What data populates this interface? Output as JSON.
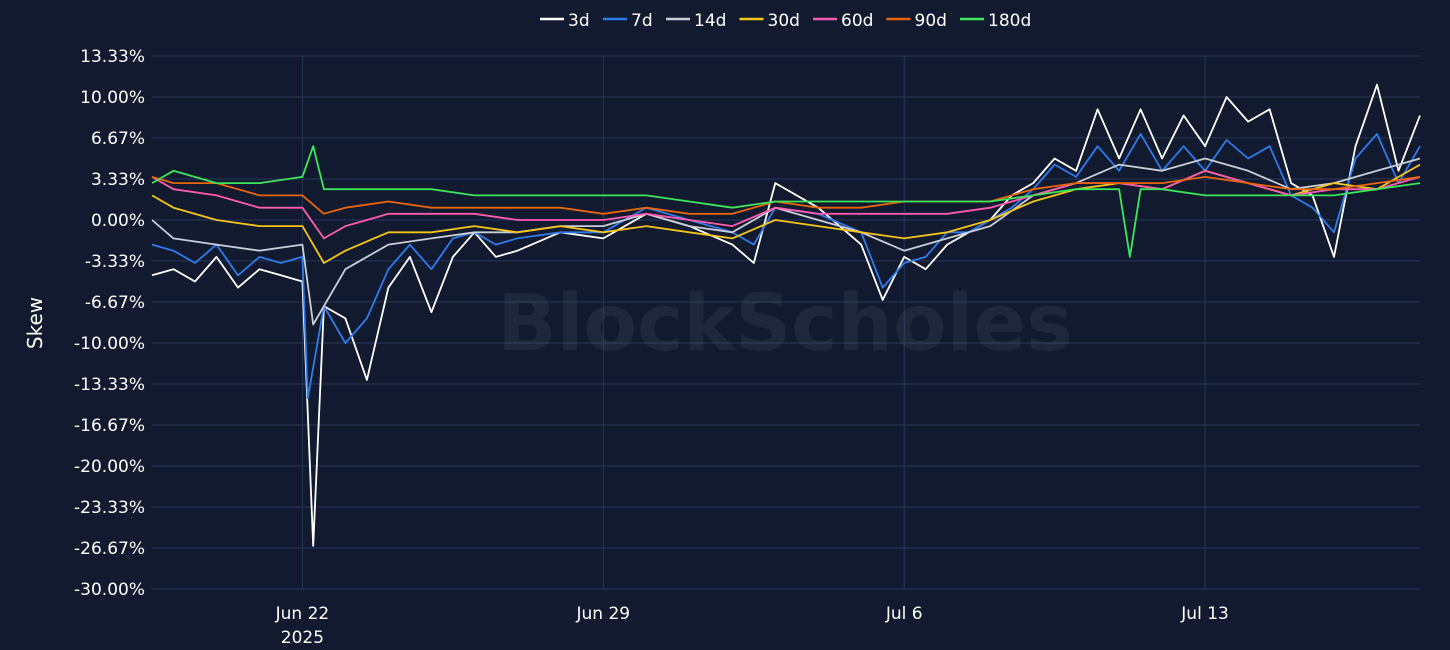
{
  "chart_data": {
    "type": "line",
    "ylabel": "Skew",
    "watermark": "BlockScholes",
    "ylim": [
      -30,
      13.33
    ],
    "y_ticks": [
      13.33,
      10.0,
      6.67,
      3.33,
      0.0,
      -3.33,
      -6.67,
      -10.0,
      -13.33,
      -16.67,
      -20.0,
      -23.33,
      -26.67,
      -30.0
    ],
    "y_tick_labels": [
      "13.33%",
      "10.00%",
      "6.67%",
      "3.33%",
      "0.00%",
      "-3.33%",
      "-6.67%",
      "-10.00%",
      "-13.33%",
      "-16.67%",
      "-20.00%",
      "-23.33%",
      "-26.67%",
      "-30.00%"
    ],
    "xlim": [
      "2025-06-18 12:00",
      "2025-07-18"
    ],
    "x_ticks": [
      {
        "date": "2025-06-22",
        "label": "Jun 22",
        "sublabel": "2025"
      },
      {
        "date": "2025-06-29",
        "label": "Jun 29",
        "sublabel": ""
      },
      {
        "date": "2025-07-06",
        "label": "Jul 6",
        "sublabel": ""
      },
      {
        "date": "2025-07-13",
        "label": "Jul 13",
        "sublabel": ""
      }
    ],
    "grid": true,
    "legend_position": "top-center",
    "series": [
      {
        "name": "3d",
        "color": "#ffffff",
        "x": [
          "2025-06-18 12:00",
          "2025-06-19",
          "2025-06-19 12:00",
          "2025-06-20",
          "2025-06-20 12:00",
          "2025-06-21",
          "2025-06-21 12:00",
          "2025-06-22",
          "2025-06-22 06:00",
          "2025-06-22 12:00",
          "2025-06-23",
          "2025-06-23 12:00",
          "2025-06-24",
          "2025-06-24 12:00",
          "2025-06-25",
          "2025-06-25 12:00",
          "2025-06-26",
          "2025-06-26 12:00",
          "2025-06-27",
          "2025-06-28",
          "2025-06-29",
          "2025-06-30",
          "2025-07-01",
          "2025-07-02",
          "2025-07-02 12:00",
          "2025-07-03",
          "2025-07-04",
          "2025-07-05",
          "2025-07-05 12:00",
          "2025-07-06",
          "2025-07-06 12:00",
          "2025-07-07",
          "2025-07-07 12:00",
          "2025-07-08",
          "2025-07-08 12:00",
          "2025-07-09",
          "2025-07-09 12:00",
          "2025-07-10",
          "2025-07-10 12:00",
          "2025-07-11",
          "2025-07-11 12:00",
          "2025-07-12",
          "2025-07-12 12:00",
          "2025-07-13",
          "2025-07-13 12:00",
          "2025-07-14",
          "2025-07-14 12:00",
          "2025-07-15",
          "2025-07-15 12:00",
          "2025-07-16",
          "2025-07-16 12:00",
          "2025-07-17",
          "2025-07-17 12:00",
          "2025-07-18"
        ],
        "y": [
          -4.5,
          -4.0,
          -5.0,
          -3.0,
          -5.5,
          -4.0,
          -4.5,
          -5.0,
          -26.5,
          -7.0,
          -8.0,
          -13.0,
          -5.5,
          -3.0,
          -7.5,
          -3.0,
          -1.0,
          -3.0,
          -2.5,
          -1.0,
          -1.5,
          0.5,
          -0.5,
          -2.0,
          -3.5,
          3.0,
          1.0,
          -2.0,
          -6.5,
          -3.0,
          -4.0,
          -2.0,
          -1.0,
          0.0,
          2.0,
          3.0,
          5.0,
          4.0,
          9.0,
          5.0,
          9.0,
          5.0,
          8.5,
          6.0,
          10.0,
          8.0,
          9.0,
          3.0,
          2.0,
          -3.0,
          6.0,
          11.0,
          4.0,
          8.5
        ]
      },
      {
        "name": "7d",
        "color": "#2f7bec",
        "x": [
          "2025-06-18 12:00",
          "2025-06-19",
          "2025-06-19 12:00",
          "2025-06-20",
          "2025-06-20 12:00",
          "2025-06-21",
          "2025-06-21 12:00",
          "2025-06-22",
          "2025-06-22 03:00",
          "2025-06-22 12:00",
          "2025-06-23",
          "2025-06-23 12:00",
          "2025-06-24",
          "2025-06-24 12:00",
          "2025-06-25",
          "2025-06-25 12:00",
          "2025-06-26",
          "2025-06-26 12:00",
          "2025-06-27",
          "2025-06-28",
          "2025-06-29",
          "2025-06-30",
          "2025-07-01",
          "2025-07-02",
          "2025-07-02 12:00",
          "2025-07-03",
          "2025-07-04",
          "2025-07-05",
          "2025-07-05 12:00",
          "2025-07-06",
          "2025-07-06 12:00",
          "2025-07-07",
          "2025-07-07 12:00",
          "2025-07-08",
          "2025-07-08 12:00",
          "2025-07-09",
          "2025-07-09 12:00",
          "2025-07-10",
          "2025-07-10 12:00",
          "2025-07-11",
          "2025-07-11 12:00",
          "2025-07-12",
          "2025-07-12 12:00",
          "2025-07-13",
          "2025-07-13 12:00",
          "2025-07-14",
          "2025-07-14 12:00",
          "2025-07-15",
          "2025-07-15 12:00",
          "2025-07-16",
          "2025-07-16 12:00",
          "2025-07-17",
          "2025-07-17 12:00",
          "2025-07-18"
        ],
        "y": [
          -2.0,
          -2.5,
          -3.5,
          -2.0,
          -4.5,
          -3.0,
          -3.5,
          -3.0,
          -14.5,
          -7.0,
          -10.0,
          -8.0,
          -4.0,
          -2.0,
          -4.0,
          -1.5,
          -1.0,
          -2.0,
          -1.5,
          -1.0,
          -1.0,
          1.0,
          0.0,
          -1.0,
          -2.0,
          1.0,
          0.5,
          -1.0,
          -5.5,
          -3.5,
          -3.0,
          -1.0,
          -1.0,
          0.0,
          1.0,
          2.5,
          4.5,
          3.5,
          6.0,
          4.0,
          7.0,
          4.0,
          6.0,
          4.0,
          6.5,
          5.0,
          6.0,
          2.0,
          1.0,
          -1.0,
          5.0,
          7.0,
          3.0,
          6.0
        ]
      },
      {
        "name": "14d",
        "color": "#c9ced8",
        "x": [
          "2025-06-18 12:00",
          "2025-06-19",
          "2025-06-20",
          "2025-06-21",
          "2025-06-22",
          "2025-06-22 06:00",
          "2025-06-23",
          "2025-06-24",
          "2025-06-25",
          "2025-06-26",
          "2025-06-27",
          "2025-06-28",
          "2025-06-29",
          "2025-06-30",
          "2025-07-01",
          "2025-07-02",
          "2025-07-03",
          "2025-07-04",
          "2025-07-05",
          "2025-07-06",
          "2025-07-07",
          "2025-07-08",
          "2025-07-09",
          "2025-07-10",
          "2025-07-11",
          "2025-07-12",
          "2025-07-13",
          "2025-07-14",
          "2025-07-15",
          "2025-07-16",
          "2025-07-17",
          "2025-07-18"
        ],
        "y": [
          0.0,
          -1.5,
          -2.0,
          -2.5,
          -2.0,
          -8.5,
          -4.0,
          -2.0,
          -1.5,
          -1.0,
          -1.0,
          -0.5,
          -0.5,
          0.5,
          -0.5,
          -1.0,
          1.0,
          0.0,
          -1.0,
          -2.5,
          -1.5,
          -0.5,
          2.0,
          3.0,
          4.5,
          4.0,
          5.0,
          4.0,
          2.5,
          3.0,
          4.0,
          5.0
        ]
      },
      {
        "name": "30d",
        "color": "#f5c518",
        "x": [
          "2025-06-18 12:00",
          "2025-06-19",
          "2025-06-20",
          "2025-06-21",
          "2025-06-22",
          "2025-06-22 12:00",
          "2025-06-23",
          "2025-06-24",
          "2025-06-25",
          "2025-06-26",
          "2025-06-27",
          "2025-06-28",
          "2025-06-29",
          "2025-06-30",
          "2025-07-01",
          "2025-07-02",
          "2025-07-03",
          "2025-07-04",
          "2025-07-05",
          "2025-07-06",
          "2025-07-07",
          "2025-07-08",
          "2025-07-09",
          "2025-07-10",
          "2025-07-11",
          "2025-07-12",
          "2025-07-13",
          "2025-07-14",
          "2025-07-15",
          "2025-07-16",
          "2025-07-17",
          "2025-07-18"
        ],
        "y": [
          2.0,
          1.0,
          0.0,
          -0.5,
          -0.5,
          -3.5,
          -2.5,
          -1.0,
          -1.0,
          -0.5,
          -1.0,
          -0.5,
          -1.0,
          -0.5,
          -1.0,
          -1.5,
          0.0,
          -0.5,
          -1.0,
          -1.5,
          -1.0,
          0.0,
          1.5,
          2.5,
          3.0,
          2.5,
          4.0,
          3.0,
          2.0,
          3.0,
          2.5,
          4.5
        ]
      },
      {
        "name": "60d",
        "color": "#ff5bb0",
        "x": [
          "2025-06-18 12:00",
          "2025-06-19",
          "2025-06-20",
          "2025-06-21",
          "2025-06-22",
          "2025-06-22 12:00",
          "2025-06-23",
          "2025-06-24",
          "2025-06-25",
          "2025-06-26",
          "2025-06-27",
          "2025-06-28",
          "2025-06-29",
          "2025-06-30",
          "2025-07-01",
          "2025-07-02",
          "2025-07-03",
          "2025-07-04",
          "2025-07-05",
          "2025-07-06",
          "2025-07-07",
          "2025-07-08",
          "2025-07-09",
          "2025-07-10",
          "2025-07-11",
          "2025-07-12",
          "2025-07-13",
          "2025-07-14",
          "2025-07-15",
          "2025-07-16",
          "2025-07-17",
          "2025-07-18"
        ],
        "y": [
          3.5,
          2.5,
          2.0,
          1.0,
          1.0,
          -1.5,
          -0.5,
          0.5,
          0.5,
          0.5,
          0.0,
          0.0,
          0.0,
          0.5,
          0.0,
          -0.5,
          1.0,
          0.5,
          0.5,
          0.5,
          0.5,
          1.0,
          2.0,
          3.0,
          3.0,
          2.5,
          4.0,
          3.0,
          2.0,
          2.5,
          2.5,
          3.5
        ]
      },
      {
        "name": "90d",
        "color": "#e8650a",
        "x": [
          "2025-06-18 12:00",
          "2025-06-19",
          "2025-06-20",
          "2025-06-21",
          "2025-06-22",
          "2025-06-22 12:00",
          "2025-06-23",
          "2025-06-24",
          "2025-06-25",
          "2025-06-26",
          "2025-06-27",
          "2025-06-28",
          "2025-06-29",
          "2025-06-30",
          "2025-07-01",
          "2025-07-02",
          "2025-07-03",
          "2025-07-04",
          "2025-07-05",
          "2025-07-06",
          "2025-07-07",
          "2025-07-08",
          "2025-07-09",
          "2025-07-10",
          "2025-07-11",
          "2025-07-12",
          "2025-07-13",
          "2025-07-14",
          "2025-07-15",
          "2025-07-16",
          "2025-07-17",
          "2025-07-18"
        ],
        "y": [
          3.5,
          3.0,
          3.0,
          2.0,
          2.0,
          0.5,
          1.0,
          1.5,
          1.0,
          1.0,
          1.0,
          1.0,
          0.5,
          1.0,
          0.5,
          0.5,
          1.5,
          1.0,
          1.0,
          1.5,
          1.5,
          1.5,
          2.5,
          3.0,
          3.0,
          3.0,
          3.5,
          3.0,
          2.5,
          2.5,
          3.0,
          3.5
        ]
      },
      {
        "name": "180d",
        "color": "#3de65a",
        "x": [
          "2025-06-18 12:00",
          "2025-06-19",
          "2025-06-20",
          "2025-06-21",
          "2025-06-22",
          "2025-06-22 06:00",
          "2025-06-22 12:00",
          "2025-06-23",
          "2025-06-24",
          "2025-06-25",
          "2025-06-26",
          "2025-06-27",
          "2025-06-28",
          "2025-06-29",
          "2025-06-30",
          "2025-07-01",
          "2025-07-02",
          "2025-07-03",
          "2025-07-04",
          "2025-07-05",
          "2025-07-06",
          "2025-07-07",
          "2025-07-08",
          "2025-07-09",
          "2025-07-10",
          "2025-07-11",
          "2025-07-11 06:00",
          "2025-07-11 12:00",
          "2025-07-12",
          "2025-07-13",
          "2025-07-14",
          "2025-07-15",
          "2025-07-16",
          "2025-07-17",
          "2025-07-18"
        ],
        "y": [
          3.0,
          4.0,
          3.0,
          3.0,
          3.5,
          6.0,
          2.5,
          2.5,
          2.5,
          2.5,
          2.0,
          2.0,
          2.0,
          2.0,
          2.0,
          1.5,
          1.0,
          1.5,
          1.5,
          1.5,
          1.5,
          1.5,
          1.5,
          2.0,
          2.5,
          2.5,
          -3.0,
          2.5,
          2.5,
          2.0,
          2.0,
          2.0,
          2.0,
          2.5,
          3.0
        ]
      }
    ]
  }
}
